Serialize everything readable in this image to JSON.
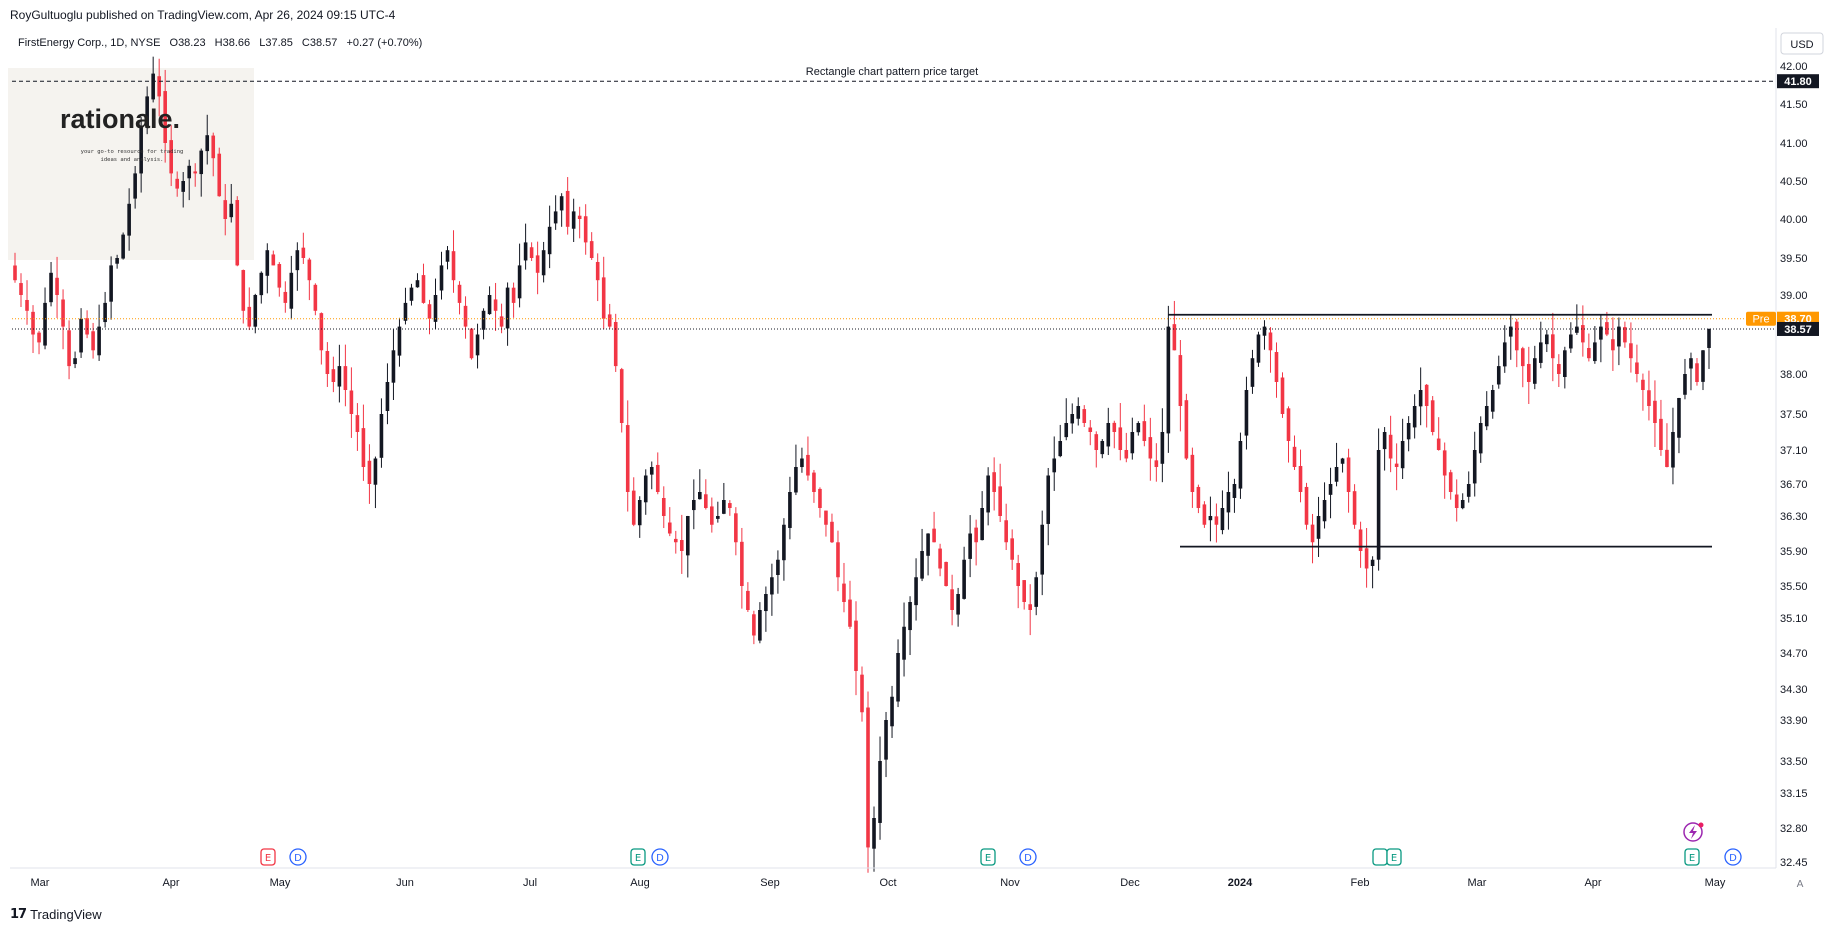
{
  "publisher": "RoyGultuoglu published on TradingView.com, Apr 26, 2024 09:15 UTC-4",
  "legend": {
    "symbol": "FirstEnergy Corp., 1D, NYSE",
    "open_label": "O",
    "open": "38.23",
    "high_label": "H",
    "high": "38.66",
    "low_label": "L",
    "low": "37.85",
    "close_label": "C",
    "close": "38.57",
    "change": "+0.27 (+0.70%)"
  },
  "watermark": {
    "brand": "rationale.",
    "tagline_1": "your go-to resource for trading",
    "tagline_2": "ideas and analysis."
  },
  "currency": "USD",
  "footer_brand": "TradingView",
  "colors": {
    "up": "#131722",
    "down": "#f23645",
    "pre_badge": "#ff9800",
    "event_earnings_red": "#f23645",
    "event_earnings_green": "#089981",
    "event_dividend": "#2962ff",
    "lightning": "#9c27b0"
  },
  "chart_data": {
    "type": "candlestick",
    "title": "FirstEnergy Corp., 1D, NYSE",
    "ylim": [
      32.2,
      42.2
    ],
    "y_ticks": [
      "42.00",
      "41.50",
      "41.00",
      "40.50",
      "40.00",
      "39.50",
      "39.00",
      "38.00",
      "37.50",
      "37.10",
      "36.70",
      "36.30",
      "35.90",
      "35.50",
      "35.10",
      "34.70",
      "34.30",
      "33.90",
      "33.50",
      "33.15",
      "32.80",
      "32.45"
    ],
    "x_ticks": [
      "Mar",
      "Apr",
      "May",
      "Jun",
      "Jul",
      "Aug",
      "Sep",
      "Oct",
      "Nov",
      "Dec",
      "2024",
      "Feb",
      "Mar",
      "Apr",
      "May"
    ],
    "price_labels": [
      {
        "name": "target",
        "value": 41.8,
        "text": "41.80"
      },
      {
        "name": "pre",
        "tag": "Pre",
        "value": 38.7,
        "text": "38.70"
      },
      {
        "name": "last",
        "value": 38.57,
        "text": "38.57"
      }
    ],
    "annotations": {
      "target_text": "Rectangle chart pattern price target",
      "target_price": 41.8,
      "rectangle_top": 38.75,
      "rectangle_bottom": 35.95,
      "rectangle_start_date": "Dec 15",
      "rectangle_end_date": "Apr 26"
    },
    "events": [
      {
        "label": "E",
        "kind": "earnings-red",
        "month": "Apr"
      },
      {
        "label": "D",
        "kind": "dividend",
        "month": "May"
      },
      {
        "label": "E",
        "kind": "earnings-green",
        "month": "Jul"
      },
      {
        "label": "D",
        "kind": "dividend",
        "month": "Aug"
      },
      {
        "label": "E",
        "kind": "earnings-green",
        "month": "Oct"
      },
      {
        "label": "D",
        "kind": "dividend",
        "month": "Nov"
      },
      {
        "label": "E",
        "kind": "earnings-green",
        "month": "Feb"
      },
      {
        "label": "E",
        "kind": "earnings-green",
        "month": "Apr"
      },
      {
        "label": "D",
        "kind": "dividend",
        "month": "May"
      }
    ],
    "series": [
      {
        "month": "Mar",
        "closes": [
          39.2,
          39.0,
          38.8,
          38.5,
          38.4,
          38.9,
          39.3,
          39.0,
          38.6,
          38.1,
          38.2,
          38.7,
          38.5,
          38.3,
          38.6,
          38.9,
          39.4,
          39.5
        ]
      },
      {
        "month": "Apr",
        "closes": [
          39.8,
          40.2,
          40.6,
          41.2,
          41.6,
          41.9,
          41.6,
          41.0,
          40.6,
          40.4,
          40.5,
          40.7,
          40.6,
          40.9,
          41.1,
          40.8,
          40.3,
          40.0,
          40.2
        ]
      },
      {
        "month": "May",
        "closes": [
          39.4,
          38.8,
          38.6,
          39.0,
          39.3,
          39.6,
          39.4,
          39.1,
          38.9,
          39.3,
          39.6,
          39.5,
          39.2,
          38.8,
          38.3,
          38.0,
          37.9,
          38.1,
          37.8,
          37.5,
          37.3
        ]
      },
      {
        "month": "Jun",
        "closes": [
          36.9,
          36.7,
          37.0,
          37.5,
          37.9,
          38.3,
          38.6,
          38.9,
          39.1,
          39.2,
          38.9,
          38.7,
          39.0,
          39.4,
          39.6,
          39.2,
          38.9,
          38.6,
          38.2,
          38.5,
          38.8
        ]
      },
      {
        "month": "Jul",
        "closes": [
          39.0,
          38.8,
          38.6,
          39.1,
          38.9,
          39.4,
          39.7,
          39.5,
          39.3,
          39.6,
          39.9,
          40.1,
          40.3,
          39.9,
          40.1,
          40.0,
          39.7,
          39.5,
          39.2,
          38.7,
          38.6
        ]
      },
      {
        "month": "Aug",
        "closes": [
          38.1,
          37.4,
          36.6,
          36.2,
          36.5,
          36.8,
          36.9,
          36.6,
          36.3,
          36.1,
          36.0,
          35.9,
          36.3,
          36.5,
          36.6,
          36.4,
          36.2,
          36.3,
          36.5,
          36.4,
          36.0,
          35.5
        ]
      },
      {
        "month": "Sep",
        "closes": [
          35.2,
          34.9,
          35.2,
          35.4,
          35.6,
          35.8,
          36.2,
          36.6,
          36.9,
          37.0,
          36.8,
          36.6,
          36.4,
          36.2,
          36.0,
          35.6,
          35.3,
          35.0,
          34.5,
          34.0
        ]
      },
      {
        "month": "Oct",
        "closes": [
          32.6,
          32.9,
          33.5,
          33.9,
          34.2,
          34.7,
          35.0,
          35.3,
          35.6,
          35.9,
          36.1,
          36.0,
          35.7,
          35.5,
          35.2,
          35.4,
          35.8,
          36.1,
          36.0,
          36.4,
          36.8,
          36.6
        ]
      },
      {
        "month": "Nov",
        "closes": [
          36.3,
          36.0,
          35.8,
          35.5,
          35.3,
          35.2,
          35.6,
          36.2,
          36.8,
          37.0,
          37.2,
          37.4,
          37.5,
          37.6,
          37.4,
          37.3,
          37.1,
          37.2,
          37.4,
          37.3,
          37.1
        ]
      },
      {
        "month": "Dec",
        "closes": [
          37.0,
          37.3,
          37.4,
          37.2,
          37.0,
          36.9,
          37.3,
          38.6,
          38.3,
          37.6,
          37.0,
          36.6,
          36.4,
          36.2,
          36.3,
          36.2,
          36.4,
          36.6,
          36.7,
          37.2
        ]
      },
      {
        "month": "2024",
        "closes": [
          37.8,
          38.2,
          38.5,
          38.6,
          38.3,
          37.9,
          37.5,
          37.2,
          36.9,
          36.6,
          36.2,
          36.0,
          36.3,
          36.5,
          36.7,
          36.9,
          37.0,
          36.6,
          36.2,
          35.9,
          35.7
        ]
      },
      {
        "month": "Feb",
        "closes": [
          35.8,
          37.1,
          37.3,
          37.0,
          36.9,
          37.2,
          37.4,
          37.6,
          37.8,
          37.6,
          37.3,
          37.1,
          36.8,
          36.6,
          36.4,
          36.5,
          36.7,
          37.1,
          37.4,
          37.6
        ]
      },
      {
        "month": "Mar",
        "closes": [
          37.8,
          38.1,
          38.4,
          38.6,
          38.3,
          38.1,
          37.9,
          38.2,
          38.4,
          38.5,
          38.2,
          38.0,
          38.3,
          38.5,
          38.6,
          38.4,
          38.2,
          38.4,
          38.6,
          38.5,
          38.3
        ]
      },
      {
        "month": "Apr",
        "closes": [
          38.6,
          38.4,
          38.2,
          38.0,
          37.8,
          37.6,
          37.4,
          37.1,
          36.9,
          37.3,
          37.7,
          38.0,
          38.2,
          37.9,
          38.3,
          38.57
        ]
      }
    ]
  }
}
